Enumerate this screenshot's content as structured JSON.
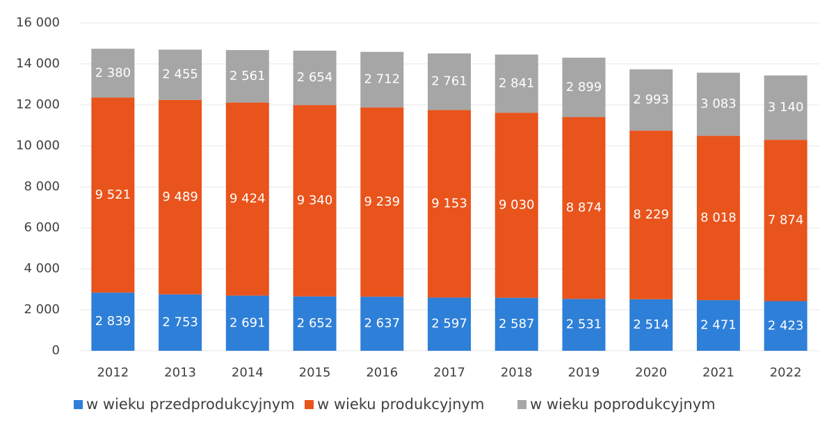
{
  "chart_data": {
    "type": "stacked_bar",
    "categories": [
      "2012",
      "2013",
      "2014",
      "2015",
      "2016",
      "2017",
      "2018",
      "2019",
      "2020",
      "2021",
      "2022"
    ],
    "series": [
      {
        "name": "w wieku przedprodukcyjnym",
        "color": "#2e7fd8",
        "values": [
          2839,
          2753,
          2691,
          2652,
          2637,
          2597,
          2587,
          2531,
          2514,
          2471,
          2423
        ],
        "value_labels": [
          "2 839",
          "2 753",
          "2 691",
          "2 652",
          "2 637",
          "2 597",
          "2 587",
          "2 531",
          "2 514",
          "2 471",
          "2 423"
        ]
      },
      {
        "name": "w wieku produkcyjnym",
        "color": "#e8541c",
        "values": [
          9521,
          9489,
          9424,
          9340,
          9239,
          9153,
          9030,
          8874,
          8229,
          8018,
          7874
        ],
        "value_labels": [
          "9 521",
          "9 489",
          "9 424",
          "9 340",
          "9 239",
          "9 153",
          "9 030",
          "8 874",
          "8 229",
          "8 018",
          "7 874"
        ]
      },
      {
        "name": "w wieku poprodukcyjnym",
        "color": "#a6a6a6",
        "values": [
          2380,
          2455,
          2561,
          2654,
          2712,
          2761,
          2841,
          2899,
          2993,
          3083,
          3140
        ],
        "value_labels": [
          "2 380",
          "2 455",
          "2 561",
          "2 654",
          "2 712",
          "2 761",
          "2 841",
          "2 899",
          "2 993",
          "3 083",
          "3 140"
        ]
      }
    ],
    "ylim": [
      0,
      16000
    ],
    "yticks": [
      0,
      {
        "value": 2000,
        "label": "2 000"
      },
      {
        "value": 4000,
        "label": "4 000"
      },
      {
        "value": 6000,
        "label": "6 000"
      },
      {
        "value": 8000,
        "label": "8 000"
      },
      {
        "value": 10000,
        "label": "10 000"
      },
      {
        "value": 12000,
        "label": "12 000"
      },
      {
        "value": 14000,
        "label": "14 000"
      },
      {
        "value": 16000,
        "label": "16 000"
      }
    ],
    "grid": true,
    "legend": "bottom"
  }
}
